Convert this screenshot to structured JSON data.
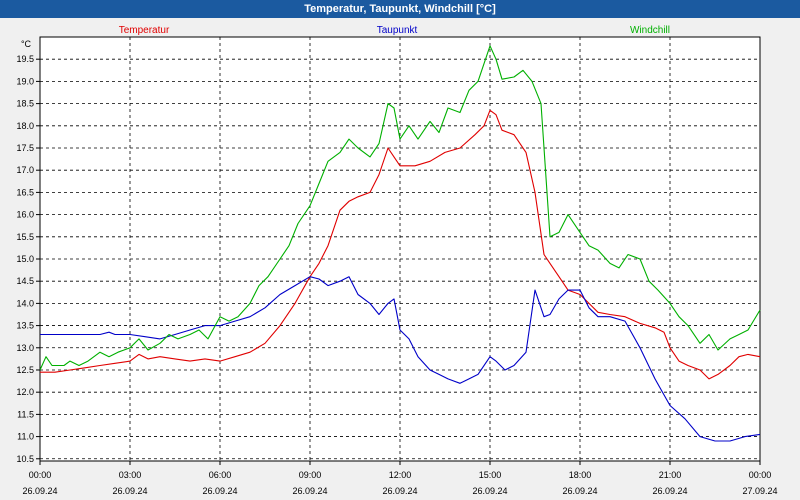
{
  "window": {
    "title": "Temperatur, Taupunkt, Windchill [°C]"
  },
  "chart_data": {
    "type": "line",
    "title": "Temperatur, Taupunkt, Windchill [°C]",
    "ylabel": "°C",
    "ylim": [
      10.45,
      20.0
    ],
    "yticks": [
      "10.5",
      "11.0",
      "11.5",
      "12.0",
      "12.5",
      "13.0",
      "13.5",
      "14.0",
      "14.5",
      "15.0",
      "15.5",
      "16.0",
      "16.5",
      "17.0",
      "17.5",
      "18.0",
      "18.5",
      "19.0",
      "19.5"
    ],
    "xlim": [
      0,
      24
    ],
    "xticks": [
      {
        "x": 0,
        "time": "00:00",
        "date": "26.09.24"
      },
      {
        "x": 3,
        "time": "03:00",
        "date": "26.09.24"
      },
      {
        "x": 6,
        "time": "06:00",
        "date": "26.09.24"
      },
      {
        "x": 9,
        "time": "09:00",
        "date": "26.09.24"
      },
      {
        "x": 12,
        "time": "12:00",
        "date": "26.09.24"
      },
      {
        "x": 15,
        "time": "15:00",
        "date": "26.09.24"
      },
      {
        "x": 18,
        "time": "18:00",
        "date": "26.09.24"
      },
      {
        "x": 21,
        "time": "21:00",
        "date": "26.09.24"
      },
      {
        "x": 24,
        "time": "00:00",
        "date": "27.09.24"
      }
    ],
    "grid": true,
    "legend_placement": "top",
    "series": [
      {
        "name": "Temperatur",
        "color": "#e00000",
        "points": [
          [
            0,
            12.45
          ],
          [
            0.5,
            12.45
          ],
          [
            1,
            12.5
          ],
          [
            1.5,
            12.55
          ],
          [
            2,
            12.6
          ],
          [
            2.5,
            12.65
          ],
          [
            3,
            12.7
          ],
          [
            3.3,
            12.85
          ],
          [
            3.6,
            12.75
          ],
          [
            4,
            12.8
          ],
          [
            4.5,
            12.75
          ],
          [
            5,
            12.7
          ],
          [
            5.5,
            12.75
          ],
          [
            6,
            12.7
          ],
          [
            6.5,
            12.8
          ],
          [
            7,
            12.9
          ],
          [
            7.5,
            13.1
          ],
          [
            8,
            13.5
          ],
          [
            8.5,
            14.0
          ],
          [
            9,
            14.6
          ],
          [
            9.3,
            14.9
          ],
          [
            9.6,
            15.3
          ],
          [
            10,
            16.1
          ],
          [
            10.3,
            16.3
          ],
          [
            10.6,
            16.4
          ],
          [
            11,
            16.5
          ],
          [
            11.3,
            16.9
          ],
          [
            11.6,
            17.5
          ],
          [
            11.8,
            17.3
          ],
          [
            12,
            17.1
          ],
          [
            12.5,
            17.1
          ],
          [
            13,
            17.2
          ],
          [
            13.5,
            17.4
          ],
          [
            14,
            17.5
          ],
          [
            14.5,
            17.8
          ],
          [
            14.8,
            18.0
          ],
          [
            15,
            18.35
          ],
          [
            15.2,
            18.25
          ],
          [
            15.4,
            17.9
          ],
          [
            15.8,
            17.8
          ],
          [
            16.2,
            17.4
          ],
          [
            16.5,
            16.5
          ],
          [
            16.8,
            15.1
          ],
          [
            17,
            14.9
          ],
          [
            17.3,
            14.6
          ],
          [
            17.6,
            14.3
          ],
          [
            18,
            14.2
          ],
          [
            18.3,
            14.0
          ],
          [
            18.6,
            13.8
          ],
          [
            19,
            13.75
          ],
          [
            19.5,
            13.7
          ],
          [
            20,
            13.55
          ],
          [
            20.5,
            13.45
          ],
          [
            20.8,
            13.35
          ],
          [
            21,
            13.0
          ],
          [
            21.3,
            12.7
          ],
          [
            21.6,
            12.6
          ],
          [
            22,
            12.5
          ],
          [
            22.3,
            12.3
          ],
          [
            22.6,
            12.4
          ],
          [
            23,
            12.6
          ],
          [
            23.3,
            12.8
          ],
          [
            23.6,
            12.85
          ],
          [
            24,
            12.8
          ]
        ]
      },
      {
        "name": "Taupunkt",
        "color": "#0000c8",
        "points": [
          [
            0,
            13.3
          ],
          [
            0.5,
            13.3
          ],
          [
            1,
            13.3
          ],
          [
            1.5,
            13.3
          ],
          [
            2,
            13.3
          ],
          [
            2.3,
            13.35
          ],
          [
            2.5,
            13.3
          ],
          [
            3,
            13.3
          ],
          [
            3.5,
            13.25
          ],
          [
            4,
            13.2
          ],
          [
            4.5,
            13.3
          ],
          [
            5,
            13.4
          ],
          [
            5.5,
            13.5
          ],
          [
            6,
            13.5
          ],
          [
            6.5,
            13.6
          ],
          [
            7,
            13.7
          ],
          [
            7.5,
            13.9
          ],
          [
            8,
            14.2
          ],
          [
            8.5,
            14.4
          ],
          [
            9,
            14.6
          ],
          [
            9.3,
            14.55
          ],
          [
            9.6,
            14.4
          ],
          [
            10,
            14.5
          ],
          [
            10.3,
            14.6
          ],
          [
            10.6,
            14.2
          ],
          [
            11,
            14.0
          ],
          [
            11.3,
            13.75
          ],
          [
            11.6,
            14.0
          ],
          [
            11.8,
            14.1
          ],
          [
            12,
            13.4
          ],
          [
            12.3,
            13.2
          ],
          [
            12.6,
            12.8
          ],
          [
            13,
            12.5
          ],
          [
            13.3,
            12.4
          ],
          [
            13.6,
            12.3
          ],
          [
            14,
            12.2
          ],
          [
            14.3,
            12.3
          ],
          [
            14.6,
            12.4
          ],
          [
            15,
            12.8
          ],
          [
            15.2,
            12.7
          ],
          [
            15.5,
            12.5
          ],
          [
            15.8,
            12.6
          ],
          [
            16.2,
            12.9
          ],
          [
            16.5,
            14.3
          ],
          [
            16.8,
            13.7
          ],
          [
            17,
            13.75
          ],
          [
            17.3,
            14.1
          ],
          [
            17.6,
            14.3
          ],
          [
            18,
            14.3
          ],
          [
            18.3,
            13.9
          ],
          [
            18.6,
            13.7
          ],
          [
            19,
            13.7
          ],
          [
            19.5,
            13.6
          ],
          [
            20,
            13.0
          ],
          [
            20.5,
            12.3
          ],
          [
            21,
            11.7
          ],
          [
            21.5,
            11.4
          ],
          [
            22,
            11.0
          ],
          [
            22.5,
            10.9
          ],
          [
            23,
            10.9
          ],
          [
            23.5,
            11.0
          ],
          [
            24,
            11.05
          ]
        ]
      },
      {
        "name": "Windchill",
        "color": "#00b000",
        "points": [
          [
            0,
            12.5
          ],
          [
            0.2,
            12.8
          ],
          [
            0.4,
            12.6
          ],
          [
            0.8,
            12.6
          ],
          [
            1,
            12.7
          ],
          [
            1.3,
            12.6
          ],
          [
            1.6,
            12.7
          ],
          [
            2,
            12.9
          ],
          [
            2.3,
            12.8
          ],
          [
            2.6,
            12.9
          ],
          [
            3,
            13.0
          ],
          [
            3.3,
            13.2
          ],
          [
            3.6,
            12.95
          ],
          [
            4,
            13.1
          ],
          [
            4.3,
            13.3
          ],
          [
            4.6,
            13.2
          ],
          [
            5,
            13.3
          ],
          [
            5.3,
            13.4
          ],
          [
            5.6,
            13.2
          ],
          [
            6,
            13.7
          ],
          [
            6.3,
            13.6
          ],
          [
            6.6,
            13.7
          ],
          [
            7,
            14.0
          ],
          [
            7.3,
            14.4
          ],
          [
            7.6,
            14.6
          ],
          [
            8,
            15.0
          ],
          [
            8.3,
            15.3
          ],
          [
            8.6,
            15.8
          ],
          [
            9,
            16.2
          ],
          [
            9.3,
            16.7
          ],
          [
            9.6,
            17.2
          ],
          [
            10,
            17.4
          ],
          [
            10.3,
            17.7
          ],
          [
            10.6,
            17.5
          ],
          [
            11,
            17.3
          ],
          [
            11.3,
            17.6
          ],
          [
            11.6,
            18.5
          ],
          [
            11.8,
            18.4
          ],
          [
            12,
            17.7
          ],
          [
            12.3,
            18.0
          ],
          [
            12.6,
            17.7
          ],
          [
            13,
            18.1
          ],
          [
            13.3,
            17.85
          ],
          [
            13.6,
            18.4
          ],
          [
            14,
            18.3
          ],
          [
            14.3,
            18.8
          ],
          [
            14.6,
            19.0
          ],
          [
            15,
            19.8
          ],
          [
            15.2,
            19.5
          ],
          [
            15.4,
            19.05
          ],
          [
            15.8,
            19.1
          ],
          [
            16.1,
            19.25
          ],
          [
            16.4,
            19.0
          ],
          [
            16.7,
            18.5
          ],
          [
            17,
            15.5
          ],
          [
            17.3,
            15.6
          ],
          [
            17.6,
            16.0
          ],
          [
            18,
            15.6
          ],
          [
            18.3,
            15.3
          ],
          [
            18.6,
            15.2
          ],
          [
            19,
            14.9
          ],
          [
            19.3,
            14.8
          ],
          [
            19.6,
            15.1
          ],
          [
            20,
            15.0
          ],
          [
            20.3,
            14.5
          ],
          [
            20.6,
            14.3
          ],
          [
            21,
            14.0
          ],
          [
            21.3,
            13.7
          ],
          [
            21.6,
            13.5
          ],
          [
            22,
            13.1
          ],
          [
            22.3,
            13.3
          ],
          [
            22.6,
            12.95
          ],
          [
            23,
            13.2
          ],
          [
            23.3,
            13.3
          ],
          [
            23.6,
            13.4
          ],
          [
            24,
            13.85
          ]
        ]
      }
    ]
  }
}
